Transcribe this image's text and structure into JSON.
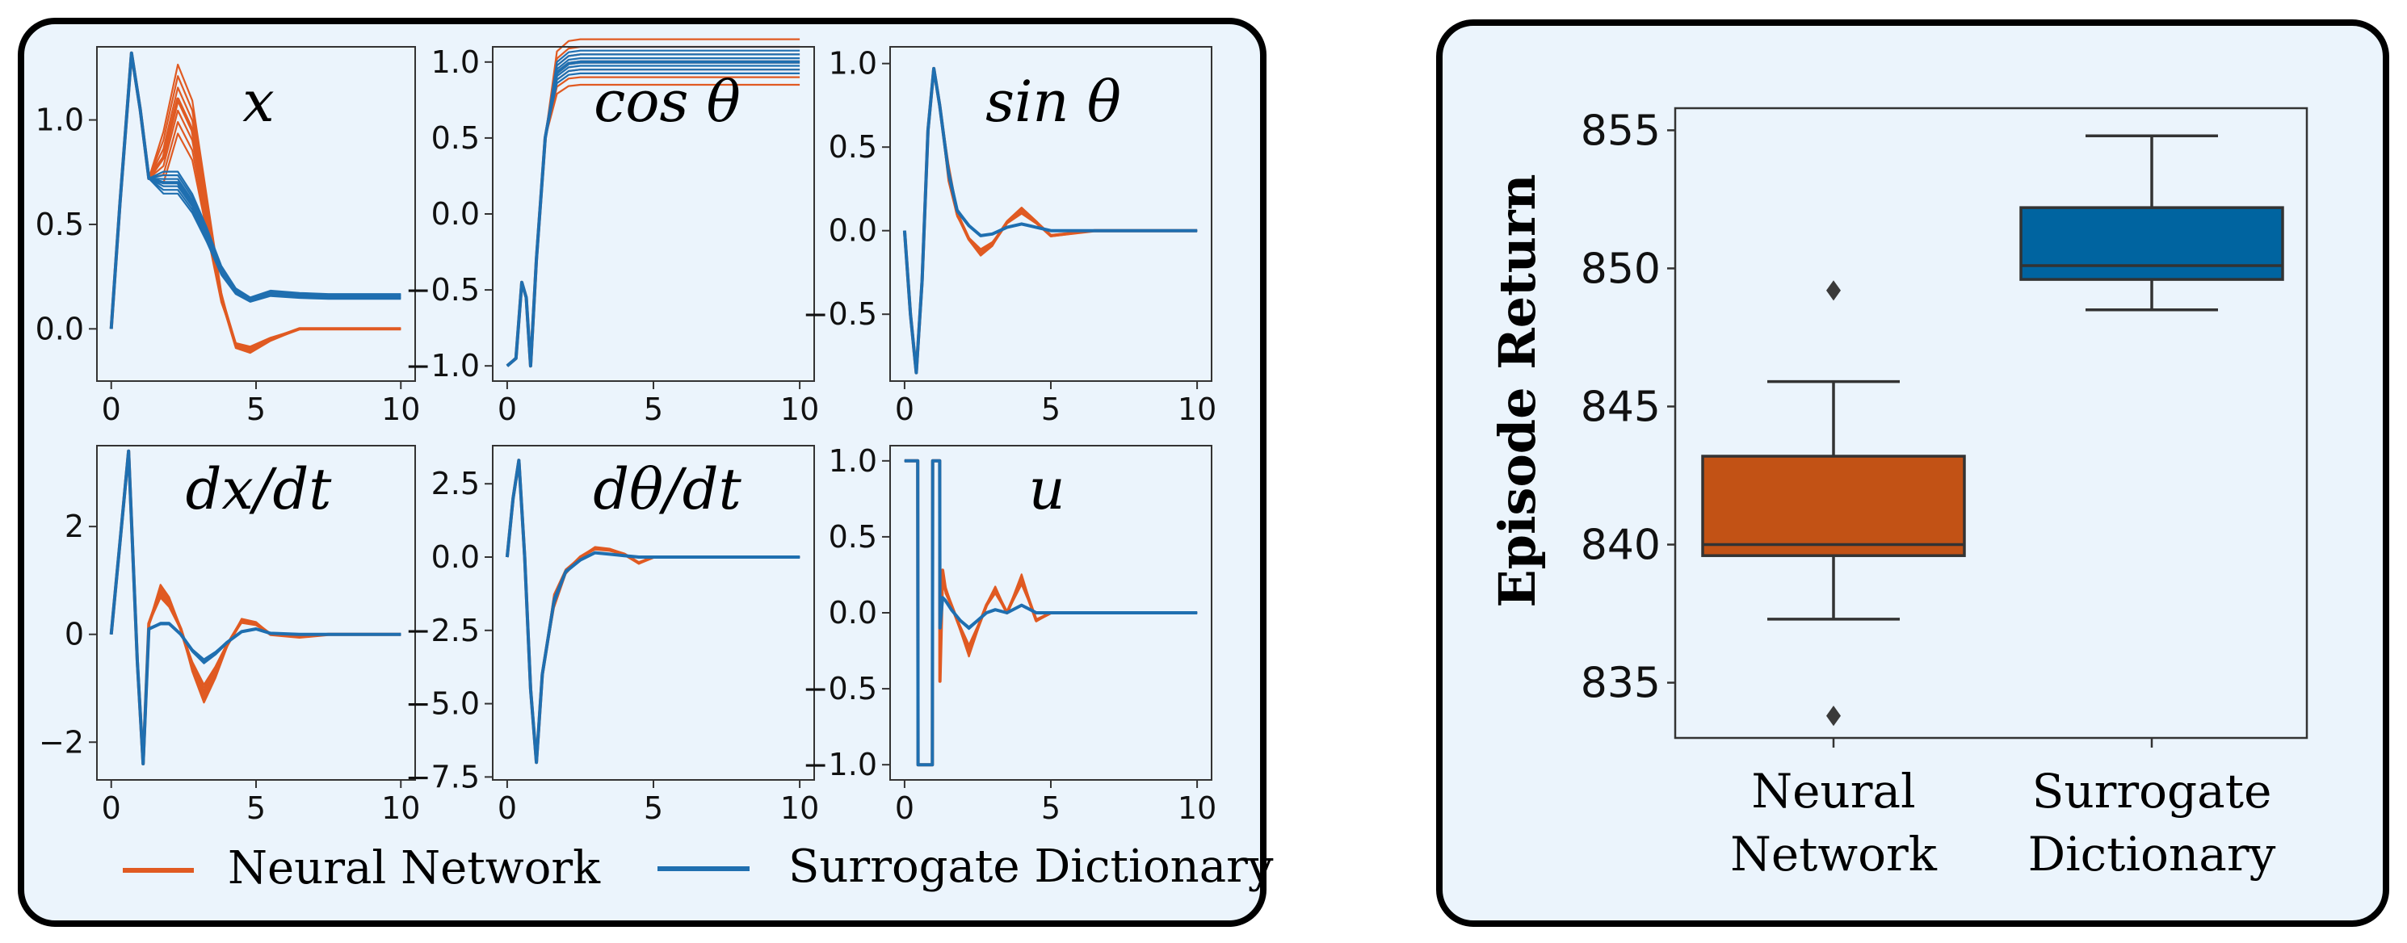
{
  "left_figure": {
    "legend": [
      {
        "label": "Neural Network",
        "color": "#e05a22"
      },
      {
        "label": "Surrogate Dictionary",
        "color": "#1f6fb0"
      }
    ]
  },
  "right_figure": {},
  "chart_data": [
    {
      "type": "line",
      "title": "x",
      "x_range": [
        0,
        10
      ],
      "ylim": [
        -0.25,
        1.35
      ],
      "x_ticks": [
        "0",
        "5",
        "10"
      ],
      "y_ticks": [
        "0.0",
        "0.5",
        "1.0"
      ],
      "series": [
        {
          "color": "#e05a22",
          "x": [
            0,
            0.3,
            0.7,
            1.0,
            1.3,
            1.8,
            2.3,
            2.8,
            3.3,
            3.8,
            4.3,
            4.8,
            5.5,
            6.5,
            7.5,
            10
          ],
          "y": [
            0.0,
            0.6,
            1.32,
            1.05,
            0.72,
            0.82,
            1.1,
            0.95,
            0.55,
            0.15,
            -0.08,
            -0.1,
            -0.05,
            0.0,
            0.0,
            0.0
          ]
        },
        {
          "color": "#1f6fb0",
          "x": [
            0,
            0.3,
            0.7,
            1.0,
            1.3,
            1.8,
            2.3,
            2.8,
            3.3,
            3.8,
            4.3,
            4.8,
            5.5,
            6.5,
            7.5,
            10
          ],
          "y": [
            0.0,
            0.6,
            1.32,
            1.05,
            0.72,
            0.7,
            0.7,
            0.6,
            0.45,
            0.28,
            0.18,
            0.14,
            0.17,
            0.16,
            0.155,
            0.155
          ]
        }
      ]
    },
    {
      "type": "line",
      "title": "cos θ",
      "x_range": [
        0,
        10
      ],
      "ylim": [
        -1.1,
        1.1
      ],
      "x_ticks": [
        "0",
        "5",
        "10"
      ],
      "y_ticks": [
        "−1.0",
        "−0.5",
        "0.0",
        "0.5",
        "1.0"
      ],
      "series": [
        {
          "color": "#e05a22",
          "x": [
            0,
            0.3,
            0.5,
            0.65,
            0.8,
            1.0,
            1.3,
            1.7,
            2.1,
            2.5,
            3,
            10
          ],
          "y": [
            -1.0,
            -0.95,
            -0.45,
            -0.55,
            -1.0,
            -0.3,
            0.5,
            0.93,
            0.99,
            1.0,
            1.0,
            1.0
          ]
        },
        {
          "color": "#1f6fb0",
          "x": [
            0,
            0.3,
            0.5,
            0.65,
            0.8,
            1.0,
            1.3,
            1.7,
            2.1,
            2.5,
            3,
            10
          ],
          "y": [
            -1.0,
            -0.95,
            -0.45,
            -0.55,
            -1.0,
            -0.3,
            0.5,
            0.93,
            0.99,
            1.0,
            1.0,
            1.0
          ]
        }
      ]
    },
    {
      "type": "line",
      "title": "sin θ",
      "x_range": [
        0,
        10
      ],
      "ylim": [
        -0.9,
        1.1
      ],
      "x_ticks": [
        "0",
        "5",
        "10"
      ],
      "y_ticks": [
        "−0.5",
        "0.0",
        "0.5",
        "1.0"
      ],
      "series": [
        {
          "color": "#e05a22",
          "x": [
            0,
            0.2,
            0.4,
            0.6,
            0.8,
            1.0,
            1.2,
            1.5,
            1.8,
            2.2,
            2.6,
            3.0,
            3.5,
            4.0,
            4.5,
            5.0,
            5.5,
            6.5,
            7.5,
            10
          ],
          "y": [
            0.0,
            -0.5,
            -0.85,
            -0.3,
            0.6,
            0.97,
            0.75,
            0.35,
            0.1,
            -0.05,
            -0.13,
            -0.08,
            0.05,
            0.12,
            0.05,
            -0.03,
            -0.02,
            0.0,
            0.0,
            0.0
          ]
        },
        {
          "color": "#1f6fb0",
          "x": [
            0,
            0.2,
            0.4,
            0.6,
            0.8,
            1.0,
            1.2,
            1.5,
            1.8,
            2.2,
            2.6,
            3.0,
            3.5,
            4.0,
            4.5,
            5.0,
            5.5,
            6.5,
            7.5,
            10
          ],
          "y": [
            0.0,
            -0.5,
            -0.85,
            -0.3,
            0.6,
            0.97,
            0.75,
            0.35,
            0.12,
            0.03,
            -0.03,
            -0.02,
            0.02,
            0.04,
            0.02,
            0.0,
            0.0,
            0.0,
            0.0,
            0.0
          ]
        }
      ]
    },
    {
      "type": "line",
      "title": "dx/dt",
      "x_range": [
        0,
        10
      ],
      "ylim": [
        -2.7,
        3.5
      ],
      "x_ticks": [
        "0",
        "5",
        "10"
      ],
      "y_ticks": [
        "−2",
        "0",
        "2"
      ],
      "series": [
        {
          "color": "#e05a22",
          "x": [
            0,
            0.3,
            0.6,
            0.9,
            1.1,
            1.3,
            1.7,
            2.0,
            2.4,
            2.8,
            3.2,
            3.6,
            4.0,
            4.5,
            5.0,
            5.5,
            6.5,
            7.5,
            10
          ],
          "y": [
            0.0,
            1.7,
            3.4,
            -0.5,
            -2.4,
            0.2,
            0.8,
            0.6,
            0.1,
            -0.6,
            -1.1,
            -0.7,
            -0.2,
            0.25,
            0.2,
            0.0,
            -0.05,
            0.0,
            0.0
          ]
        },
        {
          "color": "#1f6fb0",
          "x": [
            0,
            0.3,
            0.6,
            0.9,
            1.1,
            1.3,
            1.7,
            2.0,
            2.4,
            2.8,
            3.2,
            3.6,
            4.0,
            4.5,
            5.0,
            5.5,
            6.5,
            7.5,
            10
          ],
          "y": [
            0.0,
            1.7,
            3.4,
            -0.5,
            -2.4,
            0.1,
            0.2,
            0.2,
            0.0,
            -0.3,
            -0.5,
            -0.35,
            -0.15,
            0.05,
            0.1,
            0.02,
            0.0,
            0.0,
            0.0
          ]
        }
      ]
    },
    {
      "type": "line",
      "title": "dθ/dt",
      "x_range": [
        0,
        10
      ],
      "ylim": [
        -7.6,
        3.8
      ],
      "x_ticks": [
        "0",
        "5",
        "10"
      ],
      "y_ticks": [
        "−7.5",
        "−5.0",
        "−2.5",
        "0.0",
        "2.5"
      ],
      "series": [
        {
          "color": "#e05a22",
          "x": [
            0,
            0.2,
            0.4,
            0.6,
            0.8,
            1.0,
            1.2,
            1.6,
            2.0,
            2.5,
            3.0,
            3.5,
            4.0,
            4.5,
            5.0,
            6.0,
            10
          ],
          "y": [
            0.0,
            2.0,
            3.3,
            0.0,
            -4.5,
            -7.0,
            -4.0,
            -1.5,
            -0.5,
            0.0,
            0.3,
            0.25,
            0.1,
            -0.2,
            0.0,
            0.0,
            0.0
          ]
        },
        {
          "color": "#1f6fb0",
          "x": [
            0,
            0.2,
            0.4,
            0.6,
            0.8,
            1.0,
            1.2,
            1.6,
            2.0,
            2.5,
            3.0,
            3.5,
            4.0,
            4.5,
            5.0,
            6.0,
            10
          ],
          "y": [
            0.0,
            2.0,
            3.3,
            0.0,
            -4.5,
            -7.0,
            -4.0,
            -1.5,
            -0.5,
            -0.1,
            0.15,
            0.1,
            0.05,
            0.0,
            0.0,
            0.0,
            0.0
          ]
        }
      ]
    },
    {
      "type": "line",
      "title": "u",
      "x_range": [
        0,
        10
      ],
      "ylim": [
        -1.1,
        1.1
      ],
      "x_ticks": [
        "0",
        "5",
        "10"
      ],
      "y_ticks": [
        "−1.0",
        "−0.5",
        "0.0",
        "0.5",
        "1.0"
      ],
      "series": [
        {
          "color": "#e05a22",
          "x": [
            0,
            0.45,
            0.46,
            0.95,
            0.96,
            1.2,
            1.21,
            1.3,
            1.4,
            1.6,
            1.9,
            2.2,
            2.5,
            2.8,
            3.1,
            3.5,
            4.0,
            4.5,
            5.0,
            6.0,
            10
          ],
          "y": [
            1.0,
            1.0,
            -1.0,
            -1.0,
            1.0,
            1.0,
            -0.45,
            0.28,
            0.15,
            0.05,
            -0.1,
            -0.25,
            -0.1,
            0.05,
            0.15,
            0.0,
            0.22,
            -0.05,
            0.0,
            0.0,
            0.0
          ]
        },
        {
          "color": "#1f6fb0",
          "x": [
            0,
            0.45,
            0.46,
            0.95,
            0.96,
            1.2,
            1.21,
            1.3,
            1.4,
            1.6,
            1.9,
            2.2,
            2.5,
            2.8,
            3.1,
            3.5,
            4.0,
            4.5,
            5.0,
            6.0,
            10
          ],
          "y": [
            1.0,
            1.0,
            -1.0,
            -1.0,
            1.0,
            1.0,
            -0.1,
            0.1,
            0.08,
            0.02,
            -0.05,
            -0.1,
            -0.05,
            0.0,
            0.02,
            0.0,
            0.05,
            0.0,
            0.0,
            0.0,
            0.0
          ]
        }
      ]
    },
    {
      "type": "box",
      "ylabel": "Episode Return",
      "ylim": [
        833,
        855.8
      ],
      "y_ticks": [
        "835",
        "840",
        "845",
        "850",
        "855"
      ],
      "categories": [
        "Neural\nNetwork",
        "Surrogate\nDictionary"
      ],
      "boxes": [
        {
          "color": "#c25215",
          "whisker_low": 837.3,
          "q1": 839.6,
          "median": 840.0,
          "q3": 843.2,
          "whisker_high": 845.9,
          "outliers": [
            833.8,
            849.2
          ]
        },
        {
          "color": "#0064a0",
          "whisker_low": 848.5,
          "q1": 849.6,
          "median": 850.1,
          "q3": 852.2,
          "whisker_high": 854.8,
          "outliers": []
        }
      ]
    }
  ]
}
